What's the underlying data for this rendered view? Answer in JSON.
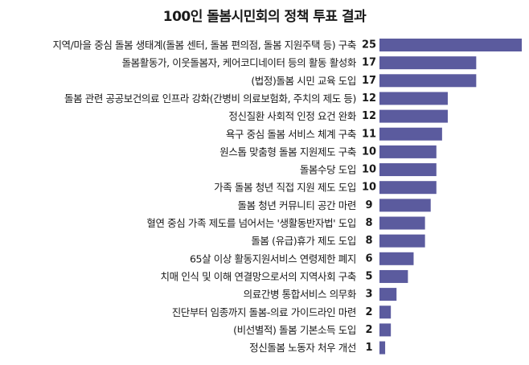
{
  "chart_data": {
    "type": "bar",
    "orientation": "horizontal",
    "title": "100인 돌봄시민회의 정책 투표 결과",
    "bar_color": "#5b5b9e",
    "categories": [
      "지역/마을 중심 돌봄 생태계(돌봄 센터, 돌봄 편의점, 돌봄 지원주택 등) 구축",
      "돌봄활동가, 이웃돌봄자, 케어코디네이터 등의 활동 활성화",
      "(법정)돌봄 시민 교육 도입",
      "돌봄 관련 공공보건의료 인프라 강화(간병비 의료보험화, 주치의 제도 등)",
      "정신질환 사회적 인정 요건 완화",
      "욕구 중심 돌봄 서비스 체계 구축",
      "원스톱 맞춤형 돌봄 지원제도 구축",
      "돌봄수당 도입",
      "가족 돌봄 청년 직접 지원 제도 도입",
      "돌봄 청년 커뮤니티 공간 마련",
      "혈연 중심 가족 제도를 넘어서는 '생활동반자법' 도입",
      "돌봄 (유급)휴가 제도 도입",
      "65살 이상 활동지원서비스 연령제한 폐지",
      "치매 인식 및 이해 연결망으로서의 지역사회 구축",
      "의료간병 통합서비스 의무화",
      "진단부터 임종까지 돌봄-의료 가이드라인 마련",
      "(비선별적) 돌봄 기본소득 도입",
      "정신돌봄 노동자 처우 개선"
    ],
    "values": [
      25,
      17,
      17,
      12,
      12,
      11,
      10,
      10,
      10,
      9,
      8,
      8,
      6,
      5,
      3,
      2,
      2,
      1
    ],
    "xlim": [
      0,
      25
    ]
  }
}
